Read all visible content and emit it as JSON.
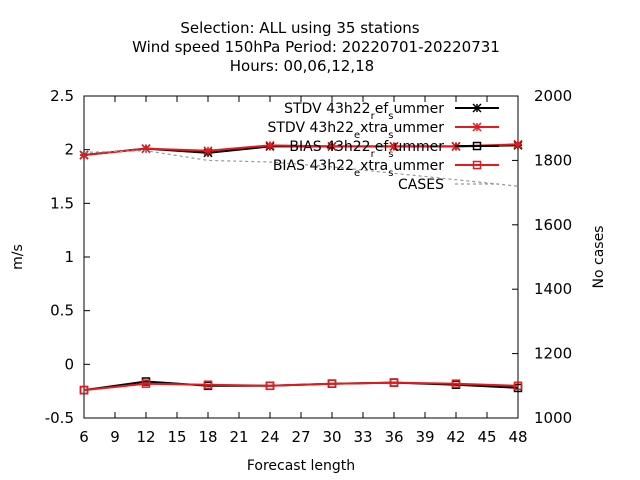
{
  "chart_data": {
    "type": "line",
    "title_lines": [
      "Selection: ALL using    35 stations",
      "Wind speed 150hPa   Period: 20220701-20220731",
      "Hours:  00,06,12,18"
    ],
    "xlabel": "Forecast length",
    "ylabel": "m/s",
    "y2label": "No cases",
    "x": [
      6,
      12,
      18,
      24,
      30,
      36,
      42,
      48
    ],
    "xlim": [
      6,
      48
    ],
    "xticks": [
      6,
      9,
      12,
      15,
      18,
      21,
      24,
      27,
      30,
      33,
      36,
      39,
      42,
      45,
      48
    ],
    "ylim": [
      -0.5,
      2.5
    ],
    "yticks": [
      -0.5,
      0,
      0.5,
      1,
      1.5,
      2,
      2.5
    ],
    "ytick_labels": [
      "-0.5",
      "0",
      "0.5",
      "1",
      "1.5",
      "2",
      "2.5"
    ],
    "y2lim": [
      1000,
      2000
    ],
    "y2ticks": [
      1000,
      1200,
      1400,
      1600,
      1800,
      2000
    ],
    "grid": false,
    "legend_position": "top-right",
    "series": [
      {
        "name": "STDV 43h22_ref_summer",
        "name_parts": [
          "STDV 43h22",
          "r",
          "ef",
          "s",
          "ummer"
        ],
        "axis": "y",
        "color": "#000000",
        "marker": "star",
        "values": [
          1.95,
          2.01,
          1.97,
          2.03,
          2.03,
          2.03,
          2.03,
          2.04
        ]
      },
      {
        "name": "STDV 43h22_extra_summer",
        "name_parts": [
          "STDV 43h22",
          "e",
          "xtra",
          "s",
          "ummer"
        ],
        "axis": "y",
        "color": "#e41a1c",
        "marker": "star",
        "values": [
          1.95,
          2.01,
          1.99,
          2.04,
          2.03,
          2.03,
          2.03,
          2.05
        ]
      },
      {
        "name": "BIAS 43h22_ref_summer",
        "name_parts": [
          "BIAS 43h22",
          "r",
          "ef",
          "s",
          "ummer"
        ],
        "axis": "y",
        "color": "#000000",
        "marker": "square",
        "values": [
          -0.24,
          -0.16,
          -0.2,
          -0.2,
          -0.18,
          -0.17,
          -0.19,
          -0.22
        ]
      },
      {
        "name": "BIAS 43h22_extra_summer",
        "name_parts": [
          "BIAS 43h22",
          "e",
          "xtra",
          "s",
          "ummer"
        ],
        "axis": "y",
        "color": "#e41a1c",
        "marker": "square",
        "values": [
          -0.24,
          -0.18,
          -0.19,
          -0.2,
          -0.18,
          -0.17,
          -0.18,
          -0.2
        ]
      },
      {
        "name": "CASES",
        "name_parts": [
          "CASES"
        ],
        "axis": "y2",
        "color": "#999999",
        "marker": "none",
        "dashed": true,
        "values": [
          1825,
          1830,
          1800,
          1795,
          1780,
          1760,
          1740,
          1720
        ]
      }
    ]
  }
}
